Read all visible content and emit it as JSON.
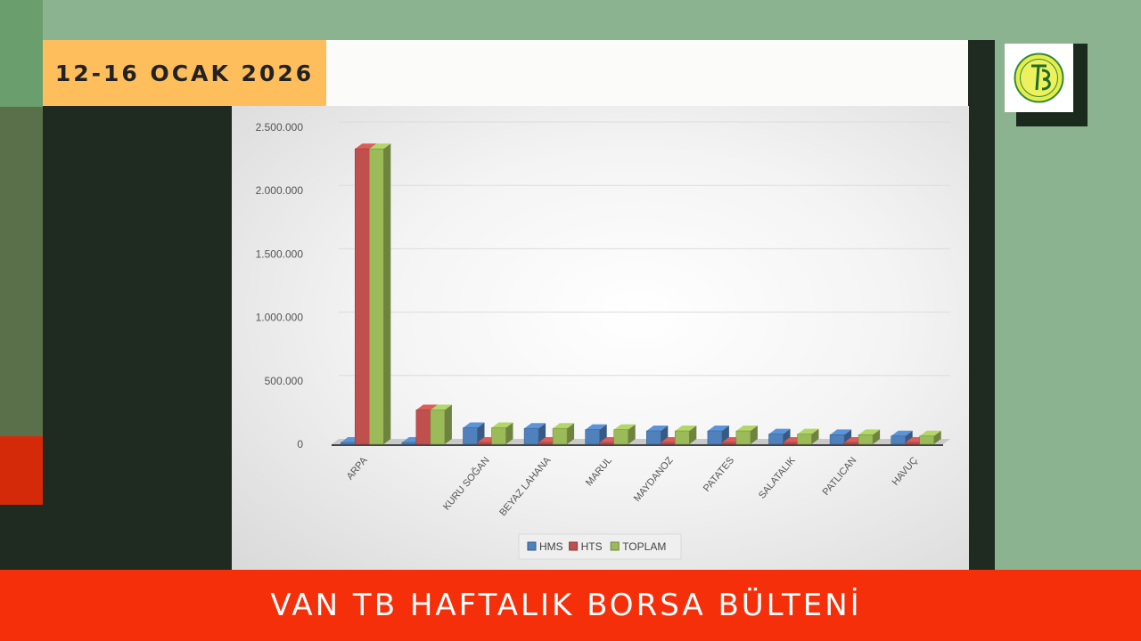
{
  "header": {
    "date": "12-16 OCAK 2026"
  },
  "footer": {
    "title": "VAN TB HAFTALIK BORSA BÜLTENİ"
  },
  "logo": {
    "icon": "tb-logo-icon",
    "text": "TB"
  },
  "colors": {
    "hms": "#4f81bd",
    "hts": "#c0504d",
    "toplam": "#9bbb59",
    "accent_orange": "#ffbe5c",
    "footer_red": "#f52f0a",
    "bg_green": "#8cb38f"
  },
  "chart_data": {
    "type": "bar",
    "three_d": true,
    "categories": [
      "ARPA",
      "",
      "KURU SOĞAN",
      "BEYAZ LAHANA",
      "MARUL",
      "MAYDANOZ",
      "PATATES",
      "SALATALIK",
      "PATLICAN",
      "HAVUÇ"
    ],
    "series": [
      {
        "name": "HMS",
        "values": [
          0,
          0,
          130000,
          125000,
          115000,
          105000,
          105000,
          80000,
          75000,
          65000
        ]
      },
      {
        "name": "HTS",
        "values": [
          2330000,
          270000,
          0,
          0,
          0,
          0,
          0,
          0,
          0,
          0
        ]
      },
      {
        "name": "TOPLAM",
        "values": [
          2330000,
          270000,
          130000,
          125000,
          115000,
          105000,
          105000,
          80000,
          75000,
          65000
        ]
      }
    ],
    "ylim": [
      0,
      2500000
    ],
    "yticks": [
      0,
      500000,
      1000000,
      1500000,
      2000000,
      2500000
    ],
    "ytick_labels": [
      "0",
      "500.000",
      "1.000.000",
      "1.500.000",
      "2.000.000",
      "2.500.000"
    ],
    "grid": true,
    "legend_position": "bottom",
    "title": "",
    "xlabel": "",
    "ylabel": ""
  }
}
